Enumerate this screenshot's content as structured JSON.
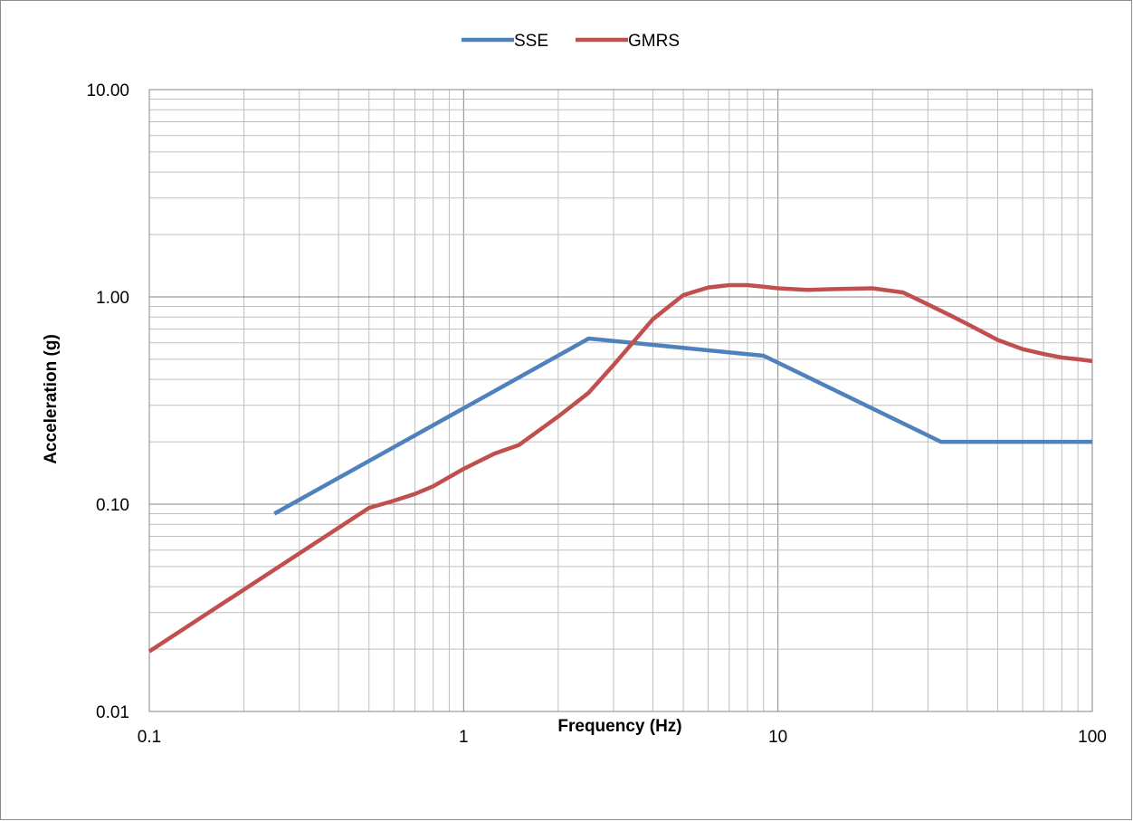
{
  "chart_data": {
    "type": "line",
    "title": "",
    "xlabel": "Frequency (Hz)",
    "ylabel": "Acceleration (g)",
    "x_scale": "log",
    "y_scale": "log",
    "xlim": [
      0.1,
      100
    ],
    "ylim": [
      0.01,
      10
    ],
    "x_tick_labels": [
      "0.1",
      "1",
      "10",
      "100"
    ],
    "x_tick_values": [
      0.1,
      1,
      10,
      100
    ],
    "y_tick_labels": [
      "0.01",
      "0.10",
      "1.00",
      "10.00"
    ],
    "y_tick_values": [
      0.01,
      0.1,
      1,
      10
    ],
    "grid": true,
    "legend_position": "top-center",
    "series": [
      {
        "name": "SSE",
        "color": "#4f81bd",
        "x": [
          0.25,
          2.5,
          9,
          33,
          100
        ],
        "y": [
          0.09,
          0.63,
          0.52,
          0.2,
          0.2
        ]
      },
      {
        "name": "GMRS",
        "color": "#c0504d",
        "x": [
          0.1,
          0.5,
          0.6,
          0.7,
          0.8,
          1,
          1.25,
          1.5,
          2,
          2.5,
          3,
          4,
          5,
          6,
          7,
          8,
          9,
          10,
          12.5,
          15,
          20,
          25,
          30,
          35,
          40,
          50,
          60,
          70,
          80,
          90,
          100
        ],
        "y": [
          0.0195,
          0.096,
          0.104,
          0.112,
          0.122,
          0.148,
          0.175,
          0.193,
          0.265,
          0.345,
          0.47,
          0.78,
          1.02,
          1.11,
          1.14,
          1.14,
          1.12,
          1.1,
          1.08,
          1.09,
          1.1,
          1.05,
          0.92,
          0.82,
          0.74,
          0.62,
          0.56,
          0.53,
          0.51,
          0.5,
          0.49
        ]
      }
    ]
  }
}
